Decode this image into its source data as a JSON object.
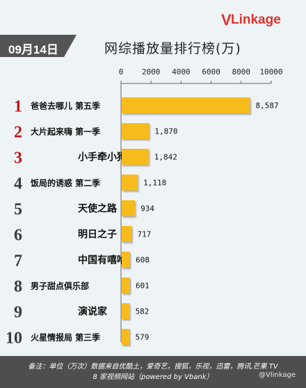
{
  "brand": {
    "logo_v": "V",
    "logo_rest": "Linkage"
  },
  "header": {
    "date": "09月14日",
    "title": "网综播放量排行榜(万)"
  },
  "colors": {
    "bar": "#f7bb1c",
    "rank": "#c0141a",
    "badge": "#545454",
    "footer": "#4e4e4e"
  },
  "chart_data": {
    "type": "bar",
    "orientation": "horizontal",
    "title": "网综播放量排行榜(万)",
    "xlim": [
      0,
      10000
    ],
    "ticks": [
      0,
      2000,
      4000,
      6000,
      8000,
      10000
    ],
    "tick_labels": [
      "0",
      "2000",
      "4000",
      "6000",
      "8000",
      "10000"
    ],
    "ranks": [
      "1",
      "2",
      "3",
      "4",
      "5",
      "6",
      "7",
      "8",
      "9",
      "10"
    ],
    "categories": [
      "爸爸去哪儿 第五季",
      "大片起来嗨 第一季",
      "小手牵小狗",
      "饭局的诱惑 第二季",
      "天使之路",
      "明日之子",
      "中国有嘻哈",
      "男子甜点俱乐部",
      "演说家",
      "火星情报局 第三季"
    ],
    "values": [
      8587,
      1870,
      1842,
      1118,
      934,
      717,
      608,
      601,
      582,
      579
    ],
    "value_labels": [
      "8,587",
      "1,870",
      "1,842",
      "1,118",
      "934",
      "717",
      "608",
      "601",
      "582",
      "579"
    ]
  },
  "footer": {
    "line1": "备注：单位（万次）数据来自优酷土，爱奇艺，搜狐，乐视，迅雷，腾讯,芒果 TV",
    "line2": "8 家视频网站（powered by Vbank）",
    "watermark": "@Vlinkage"
  }
}
